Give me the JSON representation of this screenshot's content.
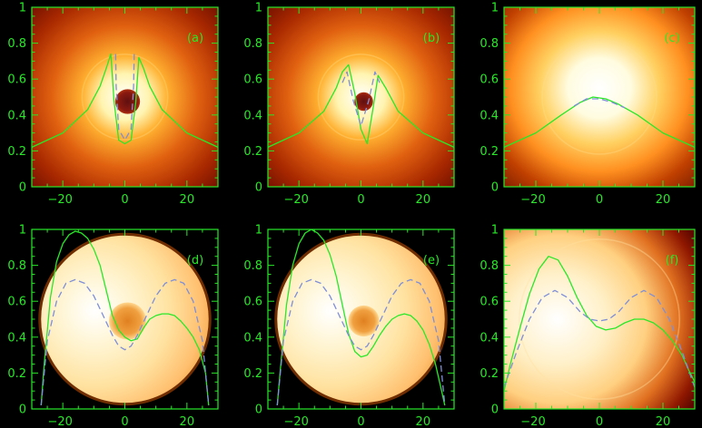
{
  "colors": {
    "axis": "#28e828",
    "solid_curve": "#28e828",
    "dashed_curve": "#7f8fd8",
    "background": "#000000",
    "image_bright": "#fffbe6",
    "image_dark": "#5a0a00"
  },
  "chart_data": [
    {
      "id": "a",
      "type": "line",
      "label": "(a)",
      "xlim": [
        -30,
        30
      ],
      "ylim": [
        0,
        1
      ],
      "xticks": [
        "-20",
        "0",
        "20"
      ],
      "yticks": [
        "0",
        "0.2",
        "0.4",
        "0.6",
        "0.8",
        "1"
      ],
      "image": {
        "style": "halo",
        "hole_radius": 4,
        "hole_color": "#7a0f0f"
      },
      "series": [
        {
          "style": "solid",
          "x": [
            -30,
            -20,
            -12,
            -8,
            -6,
            -4.5,
            -3.5,
            -2,
            0,
            2,
            3.5,
            4.5,
            6,
            8,
            12,
            20,
            30
          ],
          "y": [
            0.22,
            0.3,
            0.43,
            0.56,
            0.66,
            0.74,
            0.48,
            0.26,
            0.24,
            0.26,
            0.47,
            0.72,
            0.66,
            0.56,
            0.43,
            0.3,
            0.22
          ]
        },
        {
          "style": "dashed",
          "x": [
            -3,
            -2.8,
            -2,
            0,
            2,
            2.8,
            3
          ],
          "y": [
            0.74,
            0.56,
            0.32,
            0.26,
            0.32,
            0.56,
            0.74
          ]
        }
      ]
    },
    {
      "id": "b",
      "type": "line",
      "label": "(b)",
      "xlim": [
        -30,
        30
      ],
      "ylim": [
        0,
        1
      ],
      "xticks": [
        "-20",
        "0",
        "20"
      ],
      "yticks": [
        "0",
        "0.2",
        "0.4",
        "0.6",
        "0.8",
        "1"
      ],
      "image": {
        "style": "halo",
        "hole_radius": 3,
        "hole_color": "#8a2010"
      },
      "series": [
        {
          "style": "solid",
          "x": [
            -30,
            -20,
            -12,
            -8,
            -6,
            -4,
            -2,
            0,
            2,
            4,
            5.5,
            8,
            12,
            20,
            30
          ],
          "y": [
            0.22,
            0.3,
            0.42,
            0.55,
            0.64,
            0.68,
            0.52,
            0.32,
            0.24,
            0.45,
            0.62,
            0.55,
            0.42,
            0.3,
            0.22
          ]
        },
        {
          "style": "dashed",
          "x": [
            -6,
            -4.5,
            -2.5,
            0,
            2.5,
            4.5,
            6
          ],
          "y": [
            0.58,
            0.64,
            0.48,
            0.34,
            0.48,
            0.64,
            0.58
          ]
        }
      ]
    },
    {
      "id": "c",
      "type": "line",
      "label": "(c)",
      "xlim": [
        -30,
        30
      ],
      "ylim": [
        0,
        1
      ],
      "xticks": [
        "-20",
        "0",
        "20"
      ],
      "yticks": [
        "0",
        "0.2",
        "0.4",
        "0.6",
        "0.8",
        "1"
      ],
      "image": {
        "style": "glow"
      },
      "series": [
        {
          "style": "solid",
          "x": [
            -30,
            -20,
            -12,
            -6,
            -2,
            2,
            6,
            12,
            20,
            30
          ],
          "y": [
            0.22,
            0.3,
            0.4,
            0.47,
            0.5,
            0.49,
            0.46,
            0.4,
            0.3,
            0.22
          ]
        },
        {
          "style": "dashed",
          "x": [
            -8,
            -4,
            0,
            4,
            8
          ],
          "y": [
            0.45,
            0.49,
            0.49,
            0.47,
            0.44
          ]
        }
      ]
    },
    {
      "id": "d",
      "type": "line",
      "label": "(d)",
      "xlim": [
        -30,
        30
      ],
      "ylim": [
        0,
        1
      ],
      "xticks": [
        "-20",
        "0",
        "20"
      ],
      "yticks": [
        "0",
        "0.2",
        "0.4",
        "0.6",
        "0.8",
        "1"
      ],
      "image": {
        "style": "disk",
        "disk_radius": 27,
        "spot_radius": 6
      },
      "series": [
        {
          "style": "solid",
          "x": [
            -27,
            -26,
            -24,
            -22,
            -20,
            -18,
            -16,
            -14,
            -12,
            -10,
            -8,
            -6,
            -4,
            -2,
            0,
            2,
            4,
            6,
            8,
            10,
            12,
            14,
            16,
            18,
            20,
            22,
            24,
            26,
            27
          ],
          "y": [
            0.02,
            0.25,
            0.62,
            0.82,
            0.92,
            0.97,
            0.99,
            0.98,
            0.95,
            0.89,
            0.8,
            0.66,
            0.52,
            0.44,
            0.4,
            0.38,
            0.39,
            0.45,
            0.5,
            0.52,
            0.53,
            0.53,
            0.52,
            0.49,
            0.45,
            0.4,
            0.33,
            0.2,
            0.02
          ]
        },
        {
          "style": "dashed",
          "x": [
            -27,
            -25,
            -22,
            -19,
            -16,
            -13,
            -10,
            -7,
            -4,
            -2,
            0,
            2,
            4,
            7,
            10,
            13,
            16,
            19,
            22,
            25,
            27
          ],
          "y": [
            0.02,
            0.38,
            0.6,
            0.7,
            0.72,
            0.7,
            0.63,
            0.52,
            0.41,
            0.35,
            0.33,
            0.35,
            0.41,
            0.52,
            0.63,
            0.7,
            0.72,
            0.7,
            0.6,
            0.38,
            0.02
          ]
        }
      ]
    },
    {
      "id": "e",
      "type": "line",
      "label": "(e)",
      "xlim": [
        -30,
        30
      ],
      "ylim": [
        0,
        1
      ],
      "xticks": [
        "-20",
        "0",
        "20"
      ],
      "yticks": [
        "0",
        "0.2",
        "0.4",
        "0.6",
        "0.8",
        "1"
      ],
      "image": {
        "style": "disk",
        "disk_radius": 27,
        "spot_radius": 5
      },
      "series": [
        {
          "style": "solid",
          "x": [
            -27,
            -26,
            -24,
            -22,
            -20,
            -18,
            -16,
            -14,
            -12,
            -10,
            -8,
            -6,
            -4,
            -2,
            0,
            2,
            4,
            6,
            8,
            10,
            12,
            14,
            16,
            18,
            20,
            22,
            24,
            26,
            27
          ],
          "y": [
            0.02,
            0.22,
            0.58,
            0.8,
            0.92,
            0.98,
            1.0,
            0.98,
            0.94,
            0.86,
            0.74,
            0.58,
            0.42,
            0.32,
            0.29,
            0.3,
            0.35,
            0.41,
            0.46,
            0.5,
            0.52,
            0.53,
            0.52,
            0.49,
            0.44,
            0.36,
            0.25,
            0.1,
            0.02
          ]
        },
        {
          "style": "dashed",
          "x": [
            -27,
            -25,
            -22,
            -19,
            -16,
            -13,
            -10,
            -7,
            -4,
            -2,
            0,
            2,
            4,
            7,
            10,
            13,
            16,
            19,
            22,
            25,
            27
          ],
          "y": [
            0.02,
            0.38,
            0.6,
            0.7,
            0.72,
            0.7,
            0.63,
            0.52,
            0.41,
            0.35,
            0.33,
            0.35,
            0.41,
            0.52,
            0.63,
            0.7,
            0.72,
            0.7,
            0.6,
            0.38,
            0.02
          ]
        }
      ]
    },
    {
      "id": "f",
      "type": "line",
      "label": "(f)",
      "xlim": [
        -30,
        30
      ],
      "ylim": [
        0,
        1
      ],
      "xticks": [
        "-20",
        "0",
        "20"
      ],
      "yticks": [
        "0",
        "0.2",
        "0.4",
        "0.6",
        "0.8",
        "1"
      ],
      "image": {
        "style": "glowdisk"
      },
      "series": [
        {
          "style": "solid",
          "x": [
            -30,
            -28,
            -25,
            -22,
            -19,
            -16,
            -13,
            -10,
            -7,
            -4,
            -1,
            2,
            5,
            8,
            11,
            14,
            17,
            20,
            23,
            26,
            28,
            30
          ],
          "y": [
            0.1,
            0.25,
            0.45,
            0.64,
            0.78,
            0.85,
            0.83,
            0.74,
            0.62,
            0.52,
            0.46,
            0.44,
            0.45,
            0.48,
            0.5,
            0.5,
            0.48,
            0.44,
            0.38,
            0.3,
            0.22,
            0.15
          ]
        },
        {
          "style": "dashed",
          "x": [
            -30,
            -26,
            -22,
            -18,
            -14,
            -10,
            -6,
            -3,
            0,
            3,
            6,
            10,
            14,
            18,
            22,
            26,
            30
          ],
          "y": [
            0.12,
            0.32,
            0.5,
            0.62,
            0.66,
            0.62,
            0.54,
            0.5,
            0.49,
            0.5,
            0.54,
            0.62,
            0.66,
            0.62,
            0.5,
            0.32,
            0.12
          ]
        }
      ]
    }
  ]
}
